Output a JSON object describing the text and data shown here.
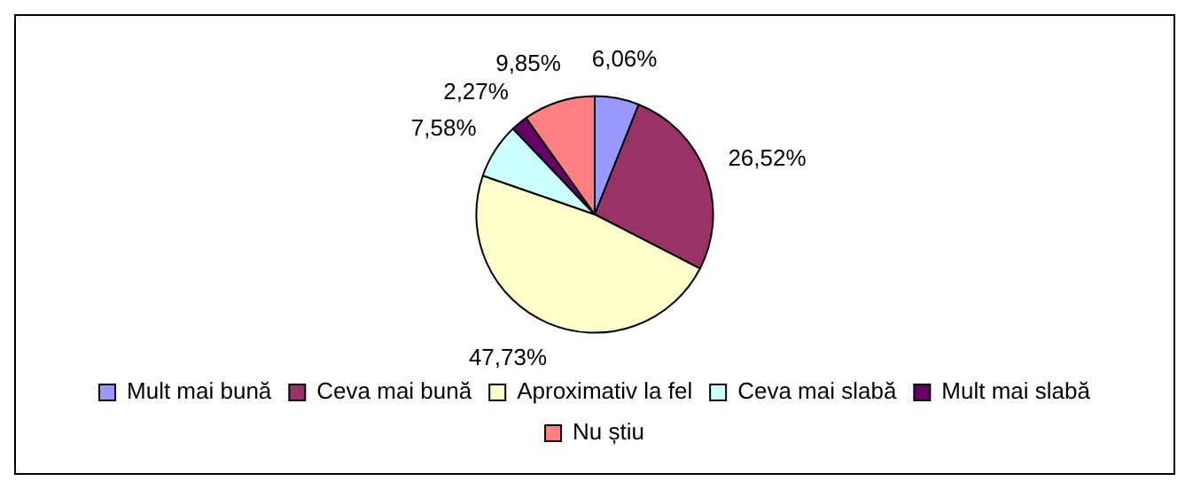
{
  "chart_data": {
    "type": "pie",
    "categories": [
      "Mult mai bună",
      "Ceva mai bună",
      "Aproximativ la fel",
      "Ceva mai slabă",
      "Mult mai slabă",
      "Nu știu"
    ],
    "values": [
      6.06,
      26.52,
      47.73,
      7.58,
      2.27,
      9.85
    ],
    "colors": [
      "#9999ff",
      "#993366",
      "#ffffcc",
      "#ccffff",
      "#660066",
      "#ff8080"
    ],
    "value_labels": [
      "6,06%",
      "26,52%",
      "47,73%",
      "7,58%",
      "2,27%",
      "9,85%"
    ],
    "legend": "bottom"
  }
}
